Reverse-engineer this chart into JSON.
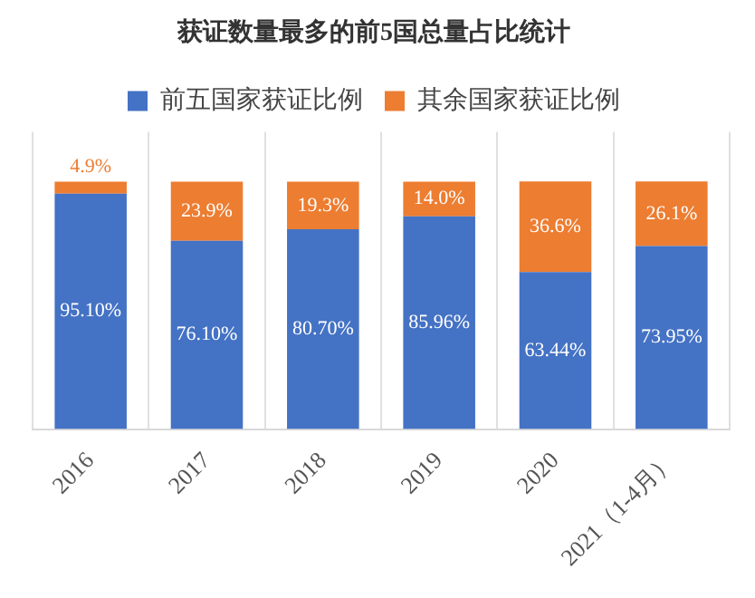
{
  "chart_data": {
    "type": "bar",
    "title": "获证数量最多的前5国总量占比统计",
    "categories": [
      "2016",
      "2017",
      "2018",
      "2019",
      "2020",
      "2021（1-4月）"
    ],
    "stacked": true,
    "legend": "top",
    "grid": "x",
    "tick_labels": "x",
    "series": [
      {
        "name": "前五国家获证比例",
        "color": "#4472c4",
        "values": [
          95.1,
          76.1,
          80.7,
          85.96,
          63.44,
          73.95
        ],
        "value_labels": [
          "95.10%",
          "76.10%",
          "80.70%",
          "85.96%",
          "63.44%",
          "73.95%"
        ]
      },
      {
        "name": "其余国家获证比例",
        "color": "#ed7d31",
        "values": [
          4.9,
          23.9,
          19.3,
          14.0,
          36.6,
          26.1
        ],
        "value_labels": [
          "4.9%",
          "23.9%",
          "19.3%",
          "14.0%",
          "36.6%",
          "26.1%"
        ]
      }
    ]
  }
}
